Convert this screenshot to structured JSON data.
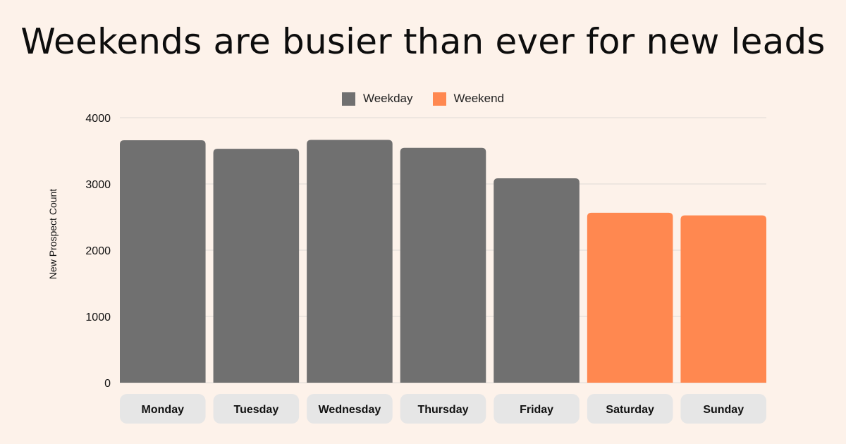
{
  "title": "Weekends are busier than ever for new leads",
  "legend": {
    "items": [
      {
        "label": "Weekday",
        "color": "#707070"
      },
      {
        "label": "Weekend",
        "color": "#ff8850"
      }
    ]
  },
  "chart_data": {
    "type": "bar",
    "title": "Weekends are busier than ever for new leads",
    "xlabel": "",
    "ylabel": "New Prospect Count",
    "ylim": [
      0,
      4000
    ],
    "yticks": [
      0,
      1000,
      2000,
      3000,
      4000
    ],
    "grid": true,
    "legend_position": "top-center",
    "categories": [
      "Monday",
      "Tuesday",
      "Wednesday",
      "Thursday",
      "Friday",
      "Saturday",
      "Sunday"
    ],
    "series": [
      {
        "name": "Weekday",
        "color": "#707070",
        "values": [
          3660,
          3530,
          3665,
          3545,
          3085,
          null,
          null
        ]
      },
      {
        "name": "Weekend",
        "color": "#ff8850",
        "values": [
          null,
          null,
          null,
          null,
          null,
          2565,
          2525
        ]
      }
    ],
    "category_label_style": {
      "background": "#e6e6e6",
      "color": "#111111"
    },
    "gridline_color": "#dedad6",
    "axis_text_color": "#111111"
  }
}
